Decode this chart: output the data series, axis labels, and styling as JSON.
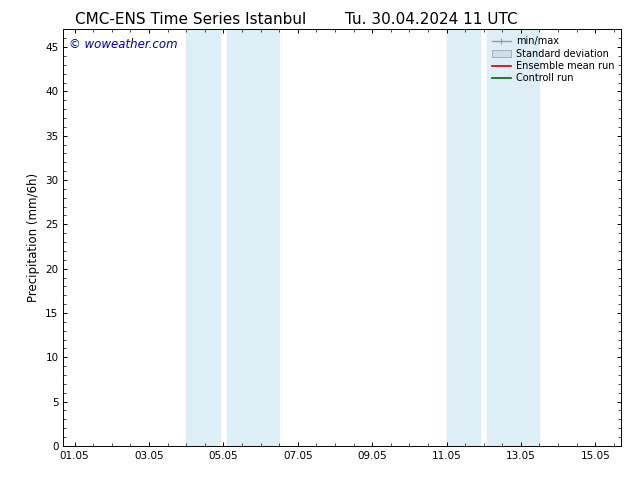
{
  "title_left": "CMC-ENS Time Series Istanbul",
  "title_right": "Tu. 30.04.2024 11 UTC",
  "ylabel": "Precipitation (mm/6h)",
  "watermark": "© woweather.com",
  "x_tick_labels": [
    "01.05",
    "03.05",
    "05.05",
    "07.05",
    "09.05",
    "11.05",
    "13.05",
    "15.05"
  ],
  "x_tick_positions": [
    0,
    2,
    4,
    6,
    8,
    10,
    12,
    14
  ],
  "ylim": [
    0,
    47
  ],
  "yticks": [
    0,
    5,
    10,
    15,
    20,
    25,
    30,
    35,
    40,
    45
  ],
  "xlim": [
    -0.3,
    14.7
  ],
  "shaded_regions": [
    {
      "xmin": 3.0,
      "xmax": 3.9
    },
    {
      "xmin": 4.1,
      "xmax": 5.5
    },
    {
      "xmin": 10.0,
      "xmax": 10.9
    },
    {
      "xmin": 11.1,
      "xmax": 12.5
    }
  ],
  "shade_color": "#ddeef7",
  "bg_color": "#ffffff",
  "legend_entries": [
    {
      "label": "min/max",
      "color": "#999999",
      "lw": 1.0,
      "type": "minmax"
    },
    {
      "label": "Standard deviation",
      "color": "#ccddee",
      "lw": 6,
      "type": "band"
    },
    {
      "label": "Ensemble mean run",
      "color": "#cc0000",
      "lw": 1.2,
      "type": "line"
    },
    {
      "label": "Controll run",
      "color": "#006600",
      "lw": 1.2,
      "type": "line"
    }
  ],
  "title_fontsize": 11,
  "tick_fontsize": 7.5,
  "label_fontsize": 8.5,
  "watermark_color": "#0000bb",
  "watermark_fontsize": 8.5
}
